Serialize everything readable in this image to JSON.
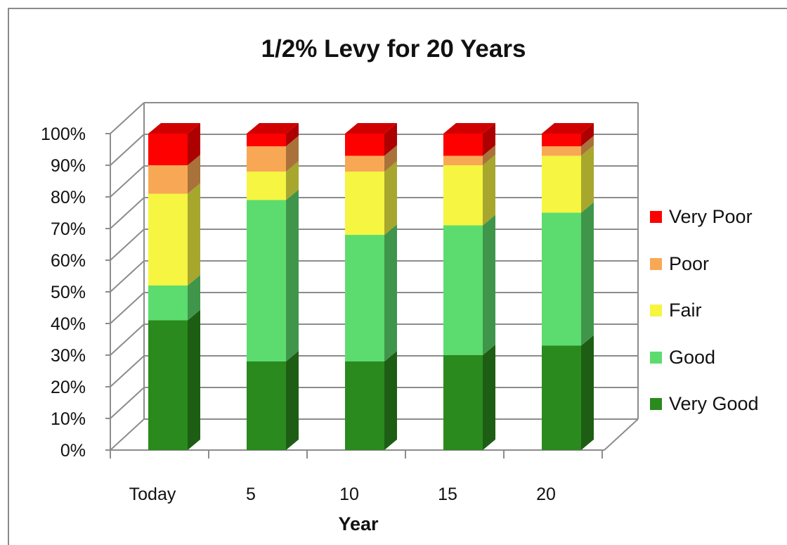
{
  "chart_data": {
    "type": "bar",
    "stacked": true,
    "title": "1/2% Levy for 20 Years",
    "xlabel": "Year",
    "ylabel": "",
    "ylim": [
      0,
      100
    ],
    "y_ticks": [
      "0%",
      "10%",
      "20%",
      "30%",
      "40%",
      "50%",
      "60%",
      "70%",
      "80%",
      "90%",
      "100%"
    ],
    "categories": [
      "Today",
      "5",
      "10",
      "15",
      "20"
    ],
    "series": [
      {
        "name": "Very Good",
        "color": "#2a8a1e",
        "values": [
          41,
          28,
          28,
          30,
          33
        ]
      },
      {
        "name": "Good",
        "color": "#5cdc6e",
        "values": [
          11,
          51,
          40,
          41,
          42
        ]
      },
      {
        "name": "Fair",
        "color": "#f5f542",
        "values": [
          29,
          9,
          20,
          19,
          18
        ]
      },
      {
        "name": "Poor",
        "color": "#f8a855",
        "values": [
          9,
          8,
          5,
          3,
          3
        ]
      },
      {
        "name": "Very Poor",
        "color": "#fe0000",
        "values": [
          10,
          4,
          7,
          7,
          4
        ]
      }
    ],
    "legend_position": "right",
    "grid": true
  }
}
